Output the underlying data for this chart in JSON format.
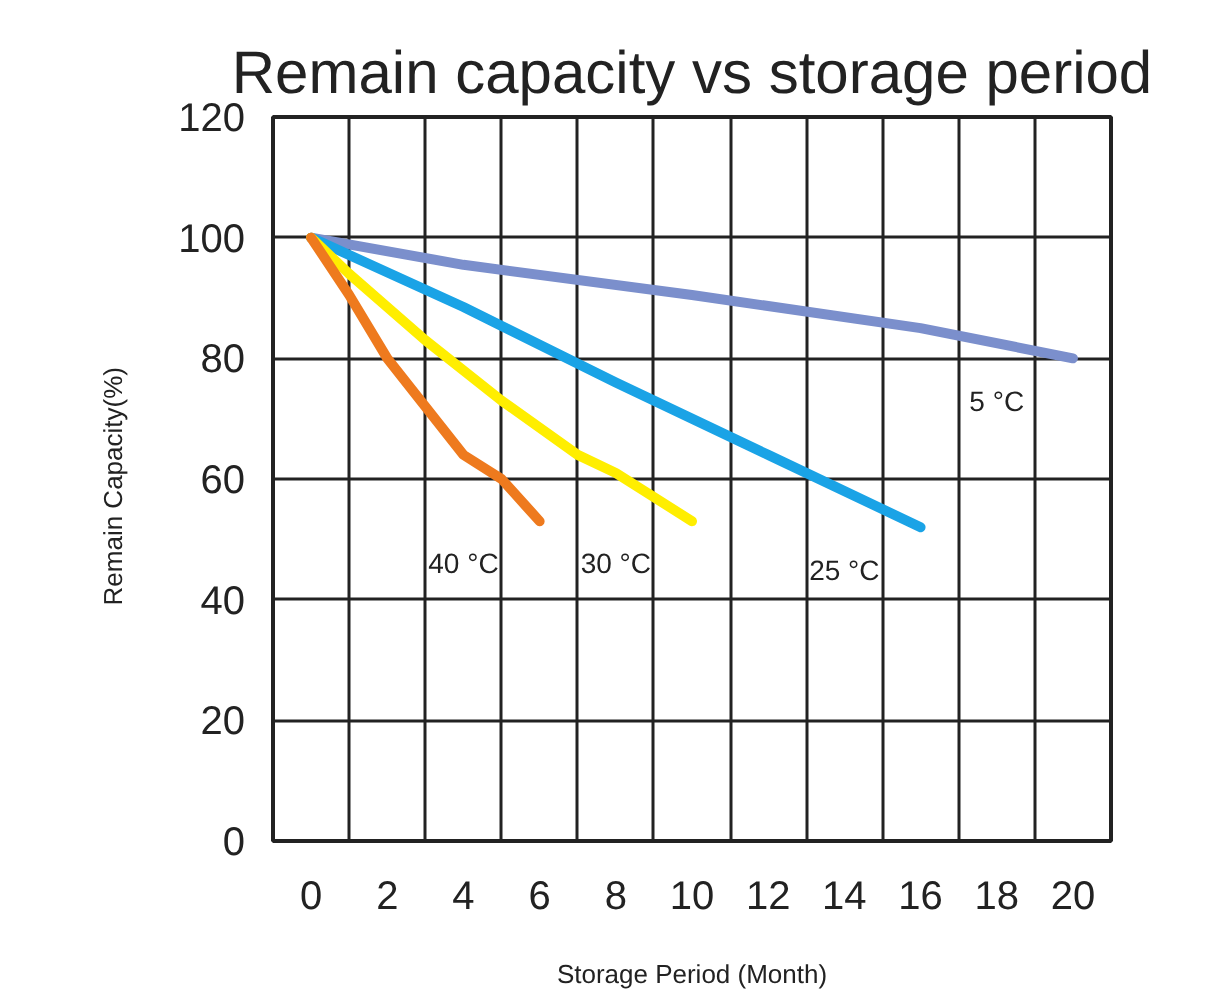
{
  "chart_data": {
    "type": "line",
    "title": "Remain capacity vs storage period",
    "xlabel": "Storage Period (Month)",
    "ylabel": "Remain   Capacity(%)",
    "xlim": [
      -1,
      21
    ],
    "xticks": [
      0,
      2,
      4,
      6,
      8,
      10,
      12,
      14,
      16,
      18,
      20
    ],
    "ylim": [
      0,
      120
    ],
    "yticks": [
      0,
      20,
      40,
      60,
      80,
      100,
      120
    ],
    "grid": true,
    "legend": false,
    "marker": "none",
    "line_style": "solid",
    "series": [
      {
        "name": "5 °C",
        "color": "#7b8fcc",
        "x": [
          0,
          4,
          10,
          16,
          20
        ],
        "values": [
          100,
          95.5,
          90.5,
          85,
          80
        ]
      },
      {
        "name": "25 °C",
        "color": "#1aa3e6",
        "x": [
          0,
          4,
          8,
          12,
          16
        ],
        "values": [
          100,
          88.5,
          76,
          64,
          52
        ]
      },
      {
        "name": "30 °C",
        "color": "#ffee00",
        "x": [
          0,
          1,
          3,
          5,
          7,
          8,
          10
        ],
        "values": [
          100,
          94,
          83,
          73,
          64,
          61,
          53
        ]
      },
      {
        "name": "40 °C",
        "color": "#ee7a1e",
        "x": [
          0,
          1,
          2,
          3,
          4,
          5,
          6
        ],
        "values": [
          100,
          90.5,
          80,
          72,
          64,
          60,
          53
        ]
      }
    ]
  }
}
